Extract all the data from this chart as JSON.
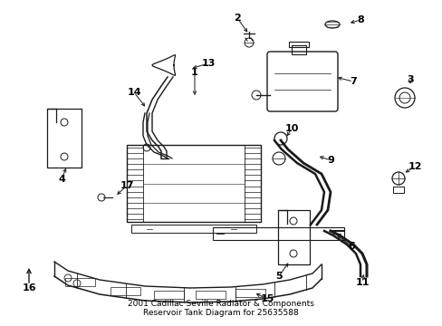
{
  "title": "2001 Cadillac Seville Radiator & Components\nReservoir Tank Diagram for 25635588",
  "title_fontsize": 6.5,
  "background_color": "#ffffff",
  "line_color": "#1a1a1a",
  "label_fontsize": 8,
  "figsize": [
    4.89,
    3.6
  ],
  "dpi": 100
}
